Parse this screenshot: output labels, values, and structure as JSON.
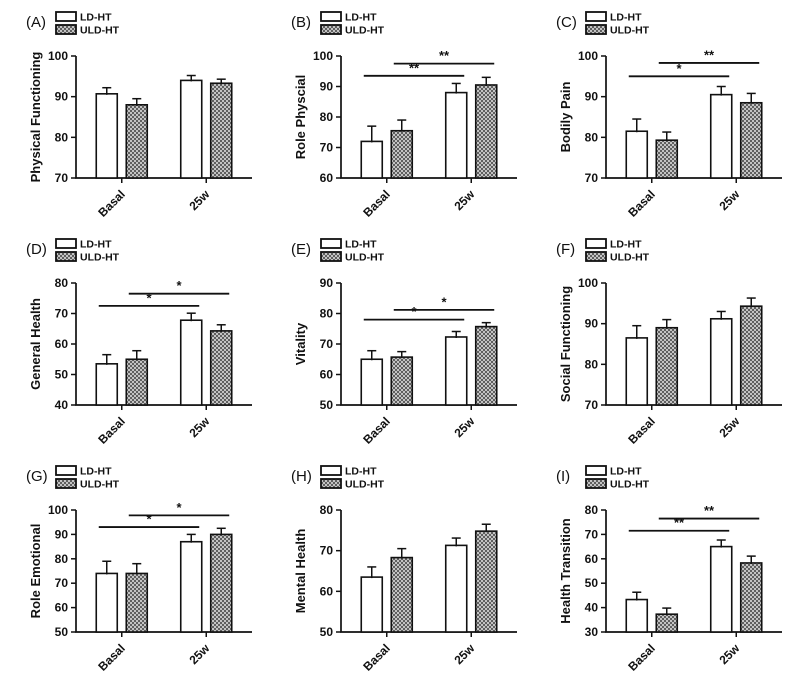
{
  "figure": {
    "background": "#ffffff",
    "ink": "#111111",
    "pattern_dark": "#5f5f5f",
    "pattern_light": "#c3c3c3",
    "bar_fill_ld": "#ffffff"
  },
  "legend": {
    "series_labels": [
      "LD-HT",
      "ULD-HT"
    ]
  },
  "chart_data": [
    {
      "type": "bar",
      "panel": "(A)",
      "ylabel": "Physical Functioning",
      "ylim": [
        70,
        100
      ],
      "ytick_step": 10,
      "grid": false,
      "legend_position": "top-left",
      "categories": [
        "Basal",
        "25w"
      ],
      "series": [
        {
          "name": "LD-HT",
          "fill": "white",
          "values": [
            90.7,
            94.0
          ],
          "errors": [
            1.5,
            1.2
          ]
        },
        {
          "name": "ULD-HT",
          "fill": "checker-pattern",
          "values": [
            88.0,
            93.3
          ],
          "errors": [
            1.5,
            1.0
          ]
        }
      ],
      "significance": []
    },
    {
      "type": "bar",
      "panel": "(B)",
      "ylabel": "Role Physcial",
      "ylim": [
        60,
        100
      ],
      "ytick_step": 10,
      "grid": false,
      "legend_position": "top-left",
      "categories": [
        "Basal",
        "25w"
      ],
      "series": [
        {
          "name": "LD-HT",
          "fill": "white",
          "values": [
            72.0,
            88.0
          ],
          "errors": [
            5.0,
            3.0
          ]
        },
        {
          "name": "ULD-HT",
          "fill": "checker-pattern",
          "values": [
            75.5,
            90.5
          ],
          "errors": [
            3.5,
            2.5
          ]
        }
      ],
      "significance": [
        {
          "label": "**",
          "y": 93.5,
          "series": 0
        },
        {
          "label": "**",
          "y": 97.5,
          "series": 1
        }
      ]
    },
    {
      "type": "bar",
      "panel": "(C)",
      "ylabel": "Bodily Pain",
      "ylim": [
        70,
        100
      ],
      "ytick_step": 10,
      "grid": false,
      "legend_position": "top-left",
      "categories": [
        "Basal",
        "25w"
      ],
      "series": [
        {
          "name": "LD-HT",
          "fill": "white",
          "values": [
            81.5,
            90.5
          ],
          "errors": [
            3.0,
            2.0
          ]
        },
        {
          "name": "ULD-HT",
          "fill": "checker-pattern",
          "values": [
            79.3,
            88.5
          ],
          "errors": [
            2.0,
            2.3
          ]
        }
      ],
      "significance": [
        {
          "label": "*",
          "y": 95.0,
          "series": 0
        },
        {
          "label": "**",
          "y": 98.3,
          "series": 1
        }
      ]
    },
    {
      "type": "bar",
      "panel": "(D)",
      "ylabel": "General Health",
      "ylim": [
        40,
        80
      ],
      "ytick_step": 10,
      "grid": false,
      "legend_position": "top-left",
      "categories": [
        "Basal",
        "25w"
      ],
      "series": [
        {
          "name": "LD-HT",
          "fill": "white",
          "values": [
            53.5,
            67.8
          ],
          "errors": [
            3.0,
            2.3
          ]
        },
        {
          "name": "ULD-HT",
          "fill": "checker-pattern",
          "values": [
            55.0,
            64.3
          ],
          "errors": [
            2.8,
            2.0
          ]
        }
      ],
      "significance": [
        {
          "label": "*",
          "y": 72.5,
          "series": 0
        },
        {
          "label": "*",
          "y": 76.5,
          "series": 1
        }
      ]
    },
    {
      "type": "bar",
      "panel": "(E)",
      "ylabel": "Vitality",
      "ylim": [
        50,
        90
      ],
      "ytick_step": 10,
      "grid": false,
      "legend_position": "top-left",
      "categories": [
        "Basal",
        "25w"
      ],
      "series": [
        {
          "name": "LD-HT",
          "fill": "white",
          "values": [
            65.0,
            72.3
          ],
          "errors": [
            2.8,
            1.8
          ]
        },
        {
          "name": "ULD-HT",
          "fill": "checker-pattern",
          "values": [
            65.7,
            75.7
          ],
          "errors": [
            1.8,
            1.3
          ]
        }
      ],
      "significance": [
        {
          "label": "*",
          "y": 78.0,
          "series": 0
        },
        {
          "label": "*",
          "y": 81.2,
          "series": 1
        }
      ]
    },
    {
      "type": "bar",
      "panel": "(F)",
      "ylabel": "Social Functioning",
      "ylim": [
        70,
        100
      ],
      "ytick_step": 10,
      "grid": false,
      "legend_position": "top-left",
      "categories": [
        "Basal",
        "25w"
      ],
      "series": [
        {
          "name": "LD-HT",
          "fill": "white",
          "values": [
            86.5,
            91.2
          ],
          "errors": [
            3.0,
            1.8
          ]
        },
        {
          "name": "ULD-HT",
          "fill": "checker-pattern",
          "values": [
            89.0,
            94.3
          ],
          "errors": [
            2.0,
            2.0
          ]
        }
      ],
      "significance": []
    },
    {
      "type": "bar",
      "panel": "(G)",
      "ylabel": "Role Emotional",
      "ylim": [
        50,
        100
      ],
      "ytick_step": 10,
      "grid": false,
      "legend_position": "top-left",
      "categories": [
        "Basal",
        "25w"
      ],
      "series": [
        {
          "name": "LD-HT",
          "fill": "white",
          "values": [
            74.0,
            87.0
          ],
          "errors": [
            5.0,
            3.0
          ]
        },
        {
          "name": "ULD-HT",
          "fill": "checker-pattern",
          "values": [
            74.0,
            90.0
          ],
          "errors": [
            4.0,
            2.5
          ]
        }
      ],
      "significance": [
        {
          "label": "*",
          "y": 93.0,
          "series": 0
        },
        {
          "label": "*",
          "y": 97.8,
          "series": 1
        }
      ]
    },
    {
      "type": "bar",
      "panel": "(H)",
      "ylabel": "Mental Health",
      "ylim": [
        50,
        80
      ],
      "ytick_step": 10,
      "grid": false,
      "legend_position": "top-left",
      "categories": [
        "Basal",
        "25w"
      ],
      "series": [
        {
          "name": "LD-HT",
          "fill": "white",
          "values": [
            63.5,
            71.3
          ],
          "errors": [
            2.5,
            1.8
          ]
        },
        {
          "name": "ULD-HT",
          "fill": "checker-pattern",
          "values": [
            68.3,
            74.8
          ],
          "errors": [
            2.2,
            1.7
          ]
        }
      ],
      "significance": []
    },
    {
      "type": "bar",
      "panel": "(I)",
      "ylabel": "Health Transition",
      "ylim": [
        30,
        80
      ],
      "ytick_step": 10,
      "grid": false,
      "legend_position": "top-left",
      "categories": [
        "Basal",
        "25w"
      ],
      "series": [
        {
          "name": "LD-HT",
          "fill": "white",
          "values": [
            43.3,
            65.0
          ],
          "errors": [
            3.0,
            2.7
          ]
        },
        {
          "name": "ULD-HT",
          "fill": "checker-pattern",
          "values": [
            37.3,
            58.3
          ],
          "errors": [
            2.5,
            2.8
          ]
        }
      ],
      "significance": [
        {
          "label": "**",
          "y": 71.5,
          "series": 0
        },
        {
          "label": "**",
          "y": 76.5,
          "series": 1
        }
      ]
    }
  ]
}
